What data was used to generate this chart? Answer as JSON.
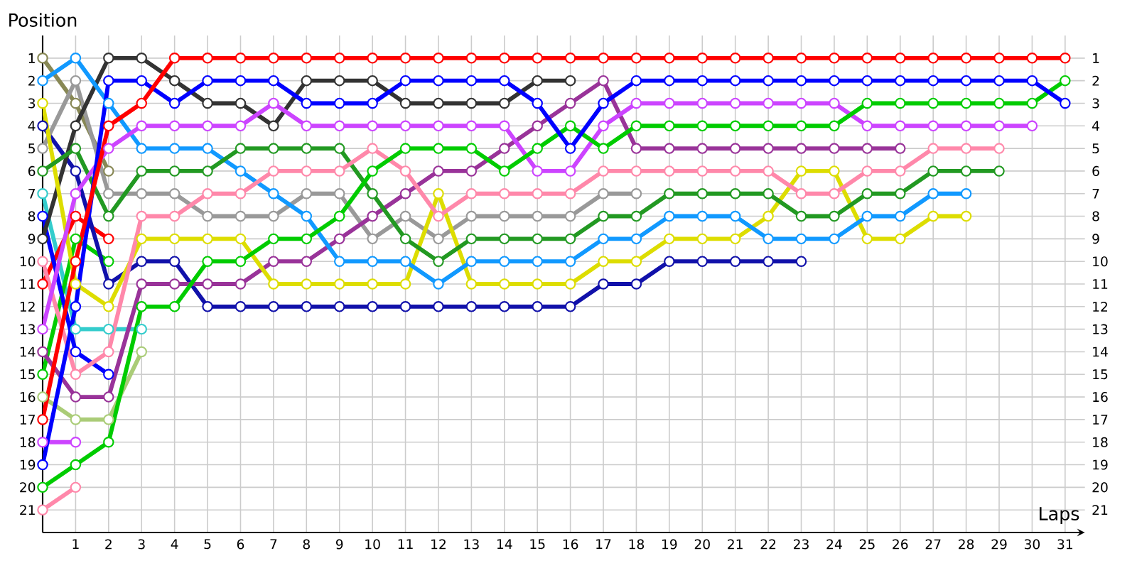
{
  "chart_data": {
    "type": "line",
    "xlabel": "Laps",
    "ylabel": "Position",
    "grid": true,
    "marker": "circle",
    "line_style": "solid",
    "x": [
      0,
      1,
      2,
      3,
      4,
      5,
      6,
      7,
      8,
      9,
      10,
      11,
      12,
      13,
      14,
      15,
      16,
      17,
      18,
      19,
      20,
      21,
      22,
      23,
      24,
      25,
      26,
      27,
      28,
      29,
      30,
      31
    ],
    "xlim": [
      0,
      31.6
    ],
    "xticks": [
      1,
      2,
      3,
      4,
      5,
      6,
      7,
      8,
      9,
      10,
      11,
      12,
      13,
      14,
      15,
      16,
      17,
      18,
      19,
      20,
      21,
      22,
      23,
      24,
      25,
      26,
      27,
      28,
      29,
      30,
      31
    ],
    "ylim": [
      22,
      0
    ],
    "yticks": [
      1,
      2,
      3,
      4,
      5,
      6,
      7,
      8,
      9,
      10,
      11,
      12,
      13,
      14,
      15,
      16,
      17,
      18,
      19,
      20,
      21
    ],
    "y2lim": [
      22,
      0
    ],
    "y2ticks": [
      1,
      2,
      3,
      4,
      5,
      6,
      7,
      8,
      9,
      10,
      11,
      12,
      13,
      14,
      15,
      16,
      17,
      18,
      19,
      20,
      21
    ],
    "series": [
      {
        "color": "#888855",
        "values": [
          1,
          3,
          6,
          null,
          null,
          null,
          null,
          null,
          null,
          null,
          null,
          null,
          null,
          null,
          null,
          null,
          null,
          null,
          null,
          null,
          null,
          null,
          null,
          null,
          null,
          null,
          null,
          null,
          null,
          null,
          null,
          null
        ]
      },
      {
        "color": "#33cccc",
        "values": [
          7,
          13,
          13,
          13,
          null,
          null,
          null,
          null,
          null,
          null,
          null,
          null,
          null,
          null,
          null,
          null,
          null,
          null,
          null,
          null,
          null,
          null,
          null,
          null,
          null,
          null,
          null,
          null,
          null,
          null,
          null,
          null
        ]
      },
      {
        "color": "#aacc77",
        "values": [
          16,
          17,
          17,
          14,
          null,
          null,
          null,
          null,
          null,
          null,
          null,
          null,
          null,
          null,
          null,
          null,
          null,
          null,
          null,
          null,
          null,
          null,
          null,
          null,
          null,
          null,
          null,
          null,
          null,
          null,
          null,
          null
        ]
      },
      {
        "color": "#ff0000",
        "values": [
          11,
          8,
          9,
          null,
          null,
          null,
          null,
          null,
          null,
          null,
          null,
          null,
          null,
          null,
          null,
          null,
          null,
          null,
          null,
          null,
          null,
          null,
          null,
          null,
          null,
          null,
          null,
          null,
          null,
          null,
          null,
          null
        ]
      },
      {
        "color": "#00cc00",
        "values": [
          15,
          9,
          10,
          null,
          null,
          null,
          null,
          null,
          null,
          null,
          null,
          null,
          null,
          null,
          null,
          null,
          null,
          null,
          null,
          null,
          null,
          null,
          null,
          null,
          null,
          null,
          null,
          null,
          null,
          null,
          null,
          null
        ]
      },
      {
        "color": "#0000ff",
        "values": [
          8,
          14,
          15,
          null,
          null,
          null,
          null,
          null,
          null,
          null,
          null,
          null,
          null,
          null,
          null,
          null,
          null,
          null,
          null,
          null,
          null,
          null,
          null,
          null,
          null,
          null,
          null,
          null,
          null,
          null,
          null,
          null
        ]
      },
      {
        "color": "#cc44ff",
        "values": [
          18,
          18,
          null,
          null,
          null,
          null,
          null,
          null,
          null,
          null,
          null,
          null,
          null,
          null,
          null,
          null,
          null,
          null,
          null,
          null,
          null,
          null,
          null,
          null,
          null,
          null,
          null,
          null,
          null,
          null,
          null,
          null
        ]
      },
      {
        "color": "#ff88aa",
        "values": [
          21,
          20,
          null,
          null,
          null,
          null,
          null,
          null,
          null,
          null,
          null,
          null,
          null,
          null,
          null,
          null,
          null,
          null,
          null,
          null,
          null,
          null,
          null,
          null,
          null,
          null,
          null,
          null,
          null,
          null,
          null,
          null
        ]
      },
      {
        "color": "#1111aa",
        "values": [
          4,
          6,
          11,
          10,
          10,
          12,
          12,
          12,
          12,
          12,
          12,
          12,
          12,
          12,
          12,
          12,
          12,
          11,
          11,
          10,
          10,
          10,
          10,
          10,
          null,
          null,
          null,
          null,
          null,
          null,
          null,
          null
        ]
      },
      {
        "color": "#999999",
        "values": [
          5,
          2,
          7,
          7,
          7,
          8,
          8,
          8,
          7,
          7,
          9,
          8,
          9,
          8,
          8,
          8,
          8,
          7,
          7,
          null,
          null,
          null,
          null,
          null,
          null,
          null,
          null,
          null,
          null,
          null,
          null,
          null
        ]
      },
      {
        "color": "#333333",
        "values": [
          9,
          4,
          1,
          1,
          2,
          3,
          3,
          4,
          2,
          2,
          2,
          3,
          3,
          3,
          3,
          2,
          2,
          null,
          null,
          null,
          null,
          null,
          null,
          null,
          null,
          null,
          null,
          null,
          null,
          null,
          null,
          null
        ]
      },
      {
        "color": "#993399",
        "values": [
          14,
          16,
          16,
          11,
          11,
          11,
          11,
          10,
          10,
          9,
          8,
          7,
          6,
          6,
          5,
          4,
          3,
          2,
          5,
          5,
          5,
          5,
          5,
          5,
          5,
          5,
          5,
          null,
          null,
          null,
          null,
          null
        ]
      },
      {
        "color": "#dddd00",
        "values": [
          3,
          11,
          12,
          9,
          9,
          9,
          9,
          11,
          11,
          11,
          11,
          11,
          7,
          11,
          11,
          11,
          11,
          10,
          10,
          9,
          9,
          9,
          8,
          6,
          6,
          9,
          9,
          8,
          8,
          null,
          null,
          null
        ]
      },
      {
        "color": "#1199ff",
        "values": [
          2,
          1,
          3,
          5,
          5,
          5,
          6,
          7,
          8,
          10,
          10,
          10,
          11,
          10,
          10,
          10,
          10,
          9,
          9,
          8,
          8,
          8,
          9,
          9,
          9,
          8,
          8,
          7,
          7,
          null,
          null,
          null
        ]
      },
      {
        "color": "#229922",
        "values": [
          6,
          5,
          8,
          6,
          6,
          6,
          5,
          5,
          5,
          5,
          7,
          9,
          10,
          9,
          9,
          9,
          9,
          8,
          8,
          7,
          7,
          7,
          7,
          8,
          8,
          7,
          7,
          6,
          6,
          6,
          null,
          null
        ]
      },
      {
        "color": "#ff88aa",
        "values": [
          10,
          15,
          14,
          8,
          8,
          7,
          7,
          6,
          6,
          6,
          5,
          6,
          8,
          7,
          7,
          7,
          7,
          6,
          6,
          6,
          6,
          6,
          6,
          7,
          7,
          6,
          6,
          5,
          5,
          5,
          null,
          null
        ]
      },
      {
        "color": "#cc44ff",
        "values": [
          13,
          7,
          5,
          4,
          4,
          4,
          4,
          3,
          4,
          4,
          4,
          4,
          4,
          4,
          4,
          6,
          6,
          4,
          3,
          3,
          3,
          3,
          3,
          3,
          3,
          4,
          4,
          4,
          4,
          4,
          4,
          null
        ]
      },
      {
        "color": "#00cc00",
        "values": [
          20,
          19,
          18,
          12,
          12,
          10,
          10,
          9,
          9,
          8,
          6,
          5,
          5,
          5,
          6,
          5,
          4,
          5,
          4,
          4,
          4,
          4,
          4,
          4,
          4,
          3,
          3,
          3,
          3,
          3,
          3,
          2
        ]
      },
      {
        "color": "#0000ff",
        "values": [
          19,
          12,
          2,
          2,
          3,
          2,
          2,
          2,
          3,
          3,
          3,
          2,
          2,
          2,
          2,
          3,
          5,
          3,
          2,
          2,
          2,
          2,
          2,
          2,
          2,
          2,
          2,
          2,
          2,
          2,
          2,
          3
        ]
      },
      {
        "color": "#ff0000",
        "values": [
          17,
          10,
          4,
          3,
          1,
          1,
          1,
          1,
          1,
          1,
          1,
          1,
          1,
          1,
          1,
          1,
          1,
          1,
          1,
          1,
          1,
          1,
          1,
          1,
          1,
          1,
          1,
          1,
          1,
          1,
          1,
          1
        ]
      }
    ]
  }
}
